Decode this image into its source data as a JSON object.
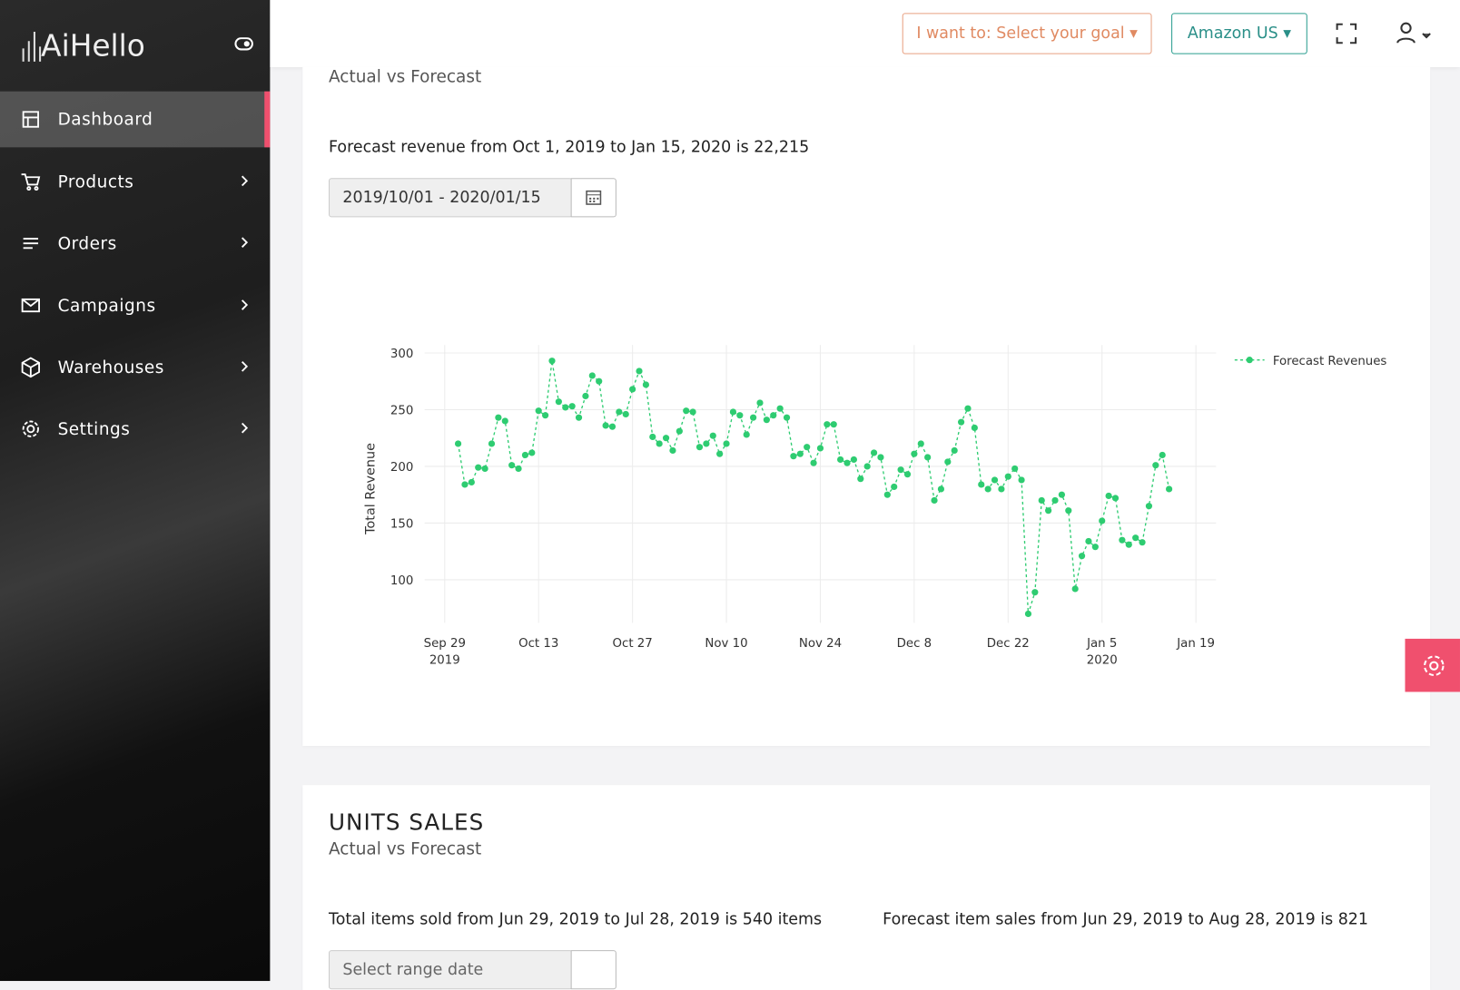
{
  "sidebar": {
    "logo": "AiHello",
    "nav": [
      "Dashboard",
      "Products",
      "Orders",
      "Campaigns",
      "Warehouses",
      "Settings"
    ]
  },
  "topbar": {
    "goal_button": "I want to: Select your goal",
    "market_button": "Amazon US"
  },
  "revenue_card": {
    "subtitle": "Actual vs Forecast",
    "summary": "Forecast revenue from Oct 1, 2019 to Jan 15, 2020 is 22,215",
    "date_range": "2019/10/01 - 2020/01/15"
  },
  "units_card": {
    "title": "UNITS SALES",
    "subtitle": "Actual vs Forecast",
    "summary_actual": "Total items sold from Jun 29, 2019 to Jul 28, 2019 is 540 items",
    "summary_forecast": "Forecast item sales from Jun 29, 2019 to Aug 28, 2019 is 821",
    "date_placeholder": "Select range date"
  },
  "chart_data": {
    "type": "line",
    "y_label": "Total Revenue",
    "legend": "top-right",
    "grid": true,
    "x": [
      "2019-10-01",
      "2019-10-02",
      "2019-10-03",
      "2019-10-04",
      "2019-10-05",
      "2019-10-06",
      "2019-10-07",
      "2019-10-08",
      "2019-10-09",
      "2019-10-10",
      "2019-10-11",
      "2019-10-12",
      "2019-10-13",
      "2019-10-14",
      "2019-10-15",
      "2019-10-16",
      "2019-10-17",
      "2019-10-18",
      "2019-10-19",
      "2019-10-20",
      "2019-10-21",
      "2019-10-22",
      "2019-10-23",
      "2019-10-24",
      "2019-10-25",
      "2019-10-26",
      "2019-10-27",
      "2019-10-28",
      "2019-10-29",
      "2019-10-30",
      "2019-10-31",
      "2019-11-01",
      "2019-11-02",
      "2019-11-03",
      "2019-11-04",
      "2019-11-05",
      "2019-11-06",
      "2019-11-07",
      "2019-11-08",
      "2019-11-09",
      "2019-11-10",
      "2019-11-11",
      "2019-11-12",
      "2019-11-13",
      "2019-11-14",
      "2019-11-15",
      "2019-11-16",
      "2019-11-17",
      "2019-11-18",
      "2019-11-19",
      "2019-11-20",
      "2019-11-21",
      "2019-11-22",
      "2019-11-23",
      "2019-11-24",
      "2019-11-25",
      "2019-11-26",
      "2019-11-27",
      "2019-11-28",
      "2019-11-29",
      "2019-11-30",
      "2019-12-01",
      "2019-12-02",
      "2019-12-03",
      "2019-12-04",
      "2019-12-05",
      "2019-12-06",
      "2019-12-07",
      "2019-12-08",
      "2019-12-09",
      "2019-12-10",
      "2019-12-11",
      "2019-12-12",
      "2019-12-13",
      "2019-12-14",
      "2019-12-15",
      "2019-12-16",
      "2019-12-17",
      "2019-12-18",
      "2019-12-19",
      "2019-12-20",
      "2019-12-21",
      "2019-12-22",
      "2019-12-23",
      "2019-12-24",
      "2019-12-25",
      "2019-12-26",
      "2019-12-27",
      "2019-12-28",
      "2019-12-29",
      "2019-12-30",
      "2019-12-31",
      "2020-01-01",
      "2020-01-02",
      "2020-01-03",
      "2020-01-04",
      "2020-01-05",
      "2020-01-06",
      "2020-01-07",
      "2020-01-08",
      "2020-01-09",
      "2020-01-10",
      "2020-01-11",
      "2020-01-12",
      "2020-01-13",
      "2020-01-14",
      "2020-01-15"
    ],
    "series": [
      {
        "name": "Forecast Revenues",
        "color": "#2ecc71",
        "values": [
          220,
          184,
          186,
          199,
          198,
          220,
          243,
          240,
          201,
          198,
          210,
          212,
          249,
          245,
          293,
          257,
          252,
          253,
          243,
          262,
          280,
          275,
          236,
          235,
          248,
          246,
          268,
          284,
          272,
          226,
          220,
          225,
          214,
          231,
          249,
          248,
          217,
          220,
          227,
          211,
          220,
          248,
          245,
          228,
          243,
          256,
          241,
          245,
          251,
          243,
          209,
          211,
          217,
          203,
          216,
          237,
          237,
          206,
          203,
          206,
          189,
          200,
          212,
          208,
          175,
          182,
          197,
          193,
          211,
          220,
          208,
          170,
          180,
          204,
          214,
          239,
          251,
          234,
          184,
          180,
          188,
          180,
          191,
          198,
          188,
          70,
          89,
          170,
          161,
          170,
          175,
          161,
          92,
          121,
          134,
          129,
          152,
          174,
          172,
          135,
          131,
          137,
          133,
          165,
          201,
          210,
          180
        ]
      }
    ],
    "xlim": [
      "2019-09-26",
      "2020-01-22"
    ],
    "xticks": [
      {
        "value": "2019-09-29",
        "label": "Sep 29\n2019"
      },
      {
        "value": "2019-10-13",
        "label": "Oct 13"
      },
      {
        "value": "2019-10-27",
        "label": "Oct 27"
      },
      {
        "value": "2019-11-10",
        "label": "Nov 10"
      },
      {
        "value": "2019-11-24",
        "label": "Nov 24"
      },
      {
        "value": "2019-12-08",
        "label": "Dec 8"
      },
      {
        "value": "2019-12-22",
        "label": "Dec 22"
      },
      {
        "value": "2020-01-05",
        "label": "Jan 5\n2020"
      },
      {
        "value": "2020-01-19",
        "label": "Jan 19"
      }
    ],
    "ylim": [
      62,
      307
    ],
    "yticks": [
      100,
      150,
      200,
      250,
      300
    ]
  }
}
